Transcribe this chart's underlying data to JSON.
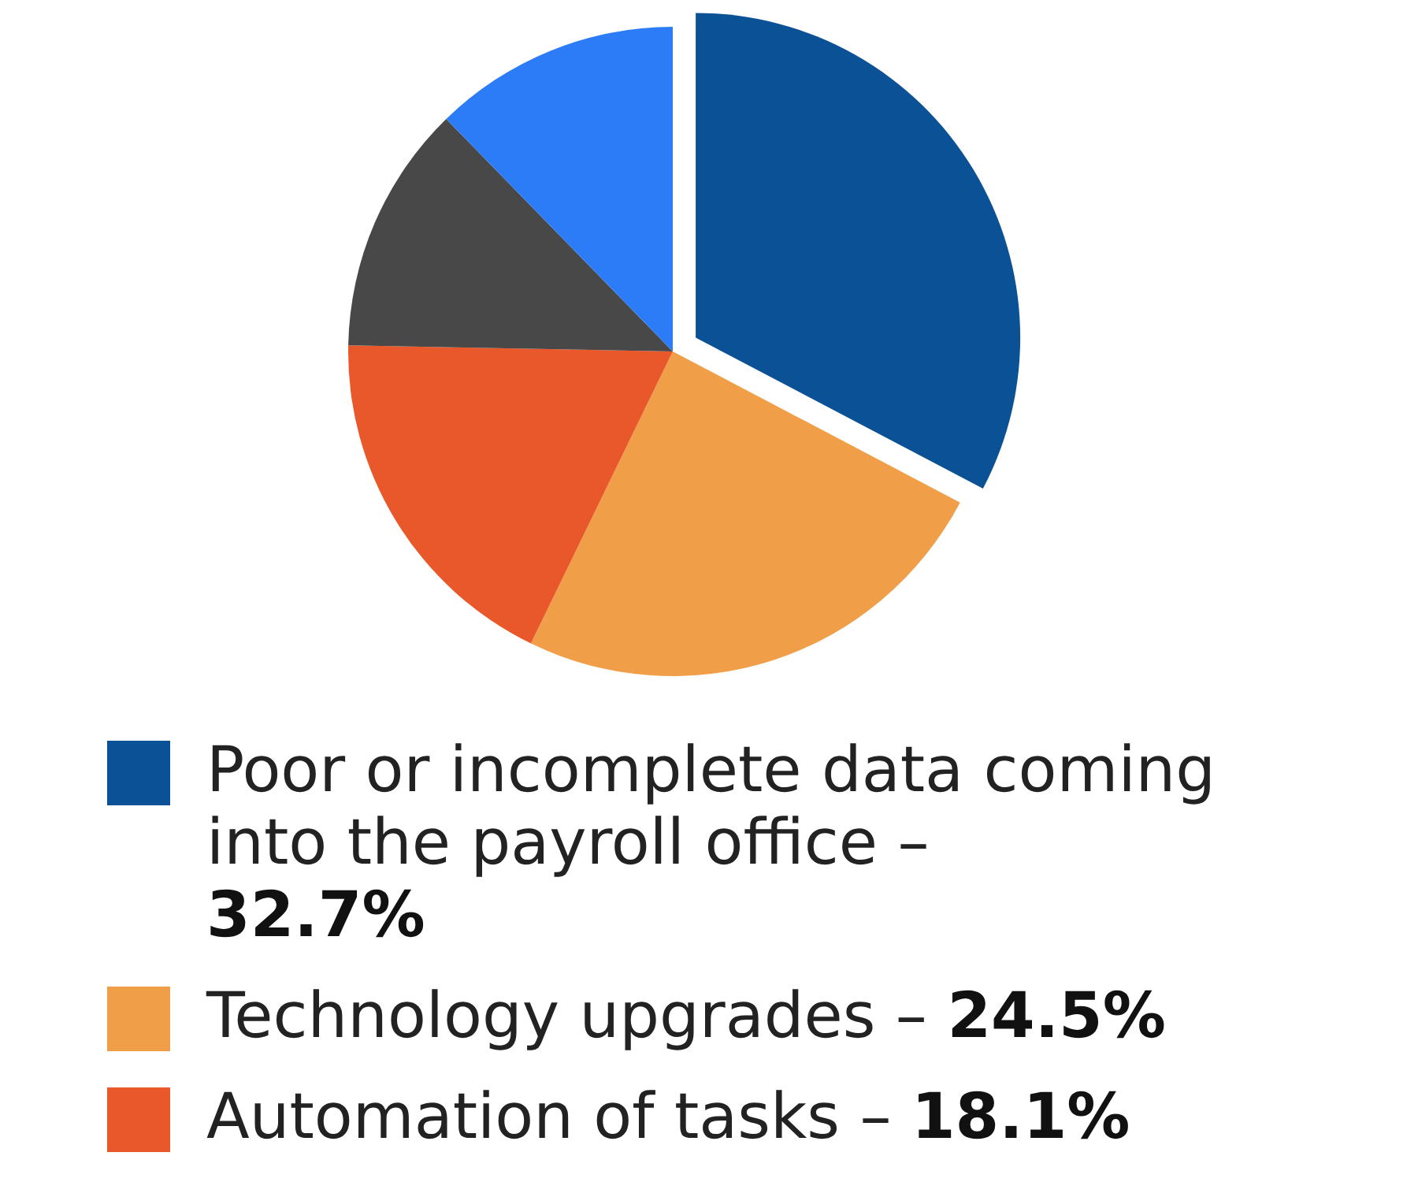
{
  "chart_data": {
    "type": "pie",
    "categories": [
      "Poor or incomplete data coming into the payroll office –",
      "Technology upgrades –",
      "Automation of tasks –",
      null,
      null
    ],
    "values": [
      32.7,
      24.5,
      18.1,
      12.4,
      12.3
    ],
    "colors": [
      "#0b5196",
      "#f19e48",
      "#e8582a",
      "#484848",
      "#2b7cf6"
    ],
    "value_labels": [
      "32.7%",
      "24.5%",
      "18.1%",
      null,
      null
    ],
    "legend": "bottom"
  }
}
